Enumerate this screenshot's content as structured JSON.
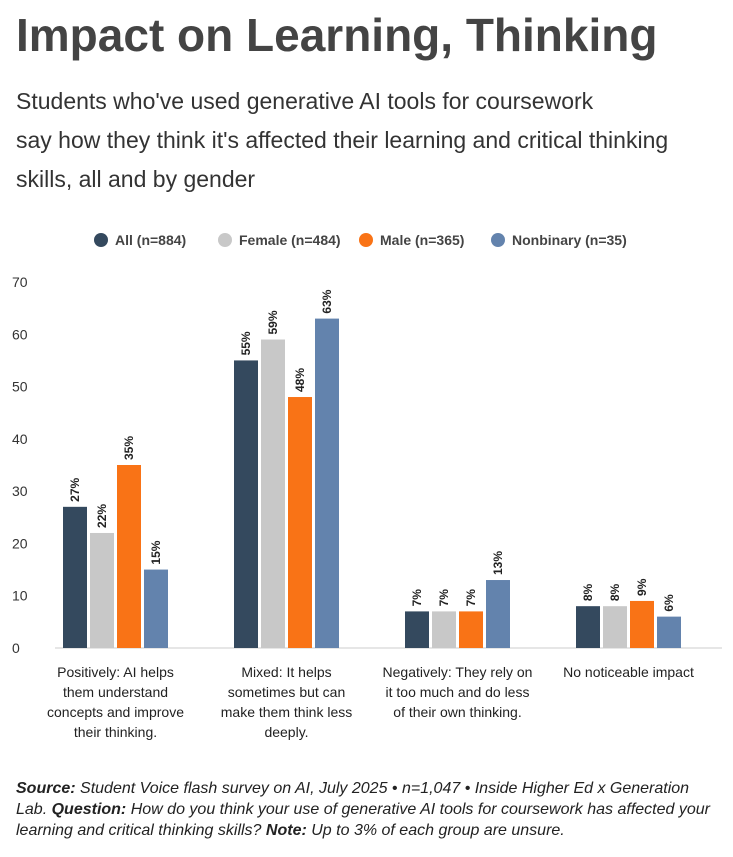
{
  "chart_data": {
    "type": "bar",
    "title": "Impact on Learning, Thinking",
    "subtitle_lines": [
      "Students who've used generative AI tools for coursework",
      "say how they think it's affected their learning and critical thinking",
      "skills, all and by gender"
    ],
    "categories": [
      [
        "Positively: AI helps",
        "them understand",
        "concepts and improve",
        "their thinking."
      ],
      [
        "Mixed: It helps",
        "sometimes but can",
        "make them think less",
        "deeply."
      ],
      [
        "Negatively: They rely on",
        "it too much and do less",
        "of their own thinking."
      ],
      [
        "No noticeable impact"
      ]
    ],
    "series": [
      {
        "name": "All (n=884)",
        "color": "#34495e",
        "values": [
          27,
          55,
          7,
          8
        ],
        "labels": [
          "27%",
          "55%",
          "7%",
          "8%"
        ]
      },
      {
        "name": "Female (n=484)",
        "color": "#c8c8c8",
        "values": [
          22,
          59,
          7,
          8
        ],
        "labels": [
          "22%",
          "59%",
          "7%",
          "8%"
        ]
      },
      {
        "name": "Male (n=365)",
        "color": "#f97316",
        "values": [
          35,
          48,
          7,
          9
        ],
        "labels": [
          "35%",
          "48%",
          "7%",
          "9%"
        ]
      },
      {
        "name": "Nonbinary (n=35)",
        "color": "#6383ad",
        "values": [
          15,
          63,
          13,
          6
        ],
        "labels": [
          "15%",
          "63%",
          "13%",
          "6%"
        ]
      }
    ],
    "yticks": [
      0,
      10,
      20,
      30,
      40,
      50,
      60,
      70
    ],
    "ylim": [
      0,
      70
    ],
    "legend_position": "top",
    "grid": false
  },
  "source": {
    "label1": "Source:",
    "text1": "Student Voice flash survey on AI, July 2025 • n=1,047 • Inside Higher Ed x Generation Lab.",
    "label2": "Question:",
    "text2": "How do you think your use of generative AI tools for coursework has affected your learning and critical thinking skills?",
    "label3": "Note:",
    "text3": "Up to 3% of each group are unsure."
  }
}
